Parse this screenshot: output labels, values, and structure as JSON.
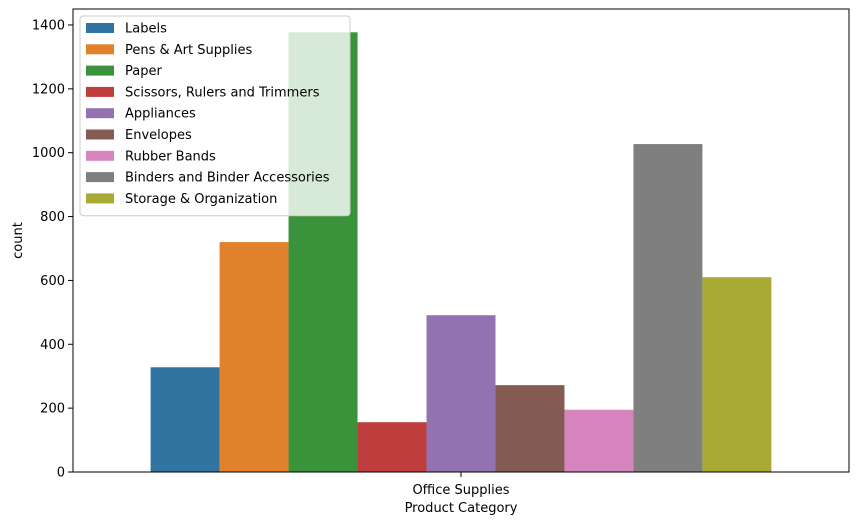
{
  "chart_data": {
    "type": "bar",
    "xlabel": "Product Category",
    "ylabel": "count",
    "categories": [
      "Office Supplies"
    ],
    "ylim": [
      0,
      1450
    ],
    "yticks": [
      0,
      200,
      400,
      600,
      800,
      1000,
      1200,
      1400
    ],
    "grid": false,
    "legend_position": "top-left",
    "series": [
      {
        "name": "Labels",
        "values": [
          328
        ],
        "color": "#3274a1"
      },
      {
        "name": "Pens & Art Supplies",
        "values": [
          720
        ],
        "color": "#e1812c"
      },
      {
        "name": "Paper",
        "values": [
          1377
        ],
        "color": "#3a923a"
      },
      {
        "name": "Scissors, Rulers and Trimmers",
        "values": [
          156
        ],
        "color": "#c03d3e"
      },
      {
        "name": "Appliances",
        "values": [
          491
        ],
        "color": "#9372b2"
      },
      {
        "name": "Envelopes",
        "values": [
          272
        ],
        "color": "#845b53"
      },
      {
        "name": "Rubber Bands",
        "values": [
          195
        ],
        "color": "#d684bd"
      },
      {
        "name": "Binders and Binder Accessories",
        "values": [
          1027
        ],
        "color": "#7f7f7f"
      },
      {
        "name": "Storage & Organization",
        "values": [
          610
        ],
        "color": "#a9aa35"
      }
    ]
  }
}
